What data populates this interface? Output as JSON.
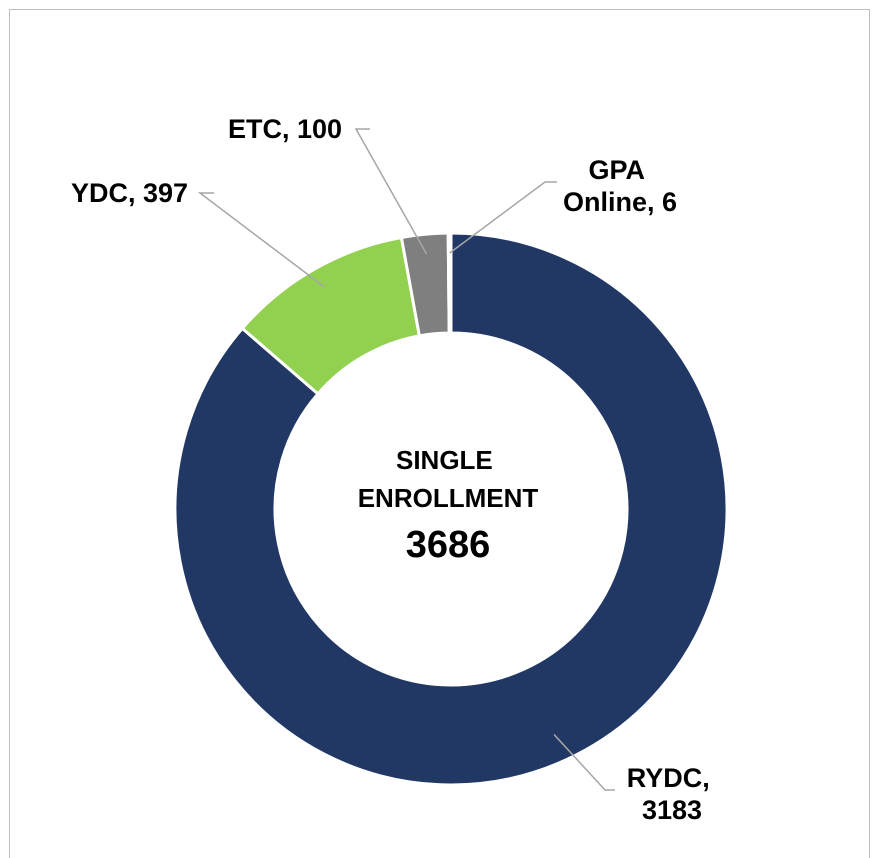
{
  "chart_data": {
    "type": "donut",
    "values": [
      3183,
      397,
      100,
      6
    ],
    "value_labels": [
      "RYDC, 3183",
      "YDC, 397",
      "ETC, 100",
      "GPA Online, 6"
    ],
    "colors": [
      "#213864",
      "#92d050",
      "#7f7f7f",
      "#a5a5a5"
    ],
    "center_label": "SINGLE ENROLLMENT",
    "total": 3686,
    "total_color": "#ff0000"
  }
}
